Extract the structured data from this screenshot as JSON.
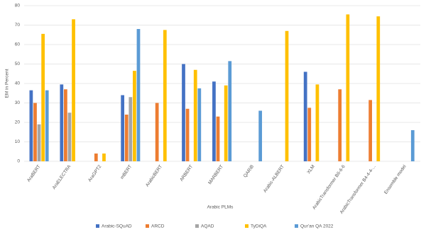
{
  "chart_data": {
    "type": "bar",
    "x_label": "Arabic PLMs",
    "y_label": "EM in Percent",
    "categories": [
      "AraBERT",
      "AraELECTRA",
      "AraGPT2",
      "mBERT",
      "ArabicBERT",
      "ARBERT",
      "MARBERT",
      "QARiB",
      "Arabic-ALBERT",
      "XLM",
      "ArabicTransformer B6-6-6",
      "ArabicTransformer B4-4-4-...",
      "Ensemble model"
    ],
    "series": [
      {
        "name": "Arabic-SQuAD",
        "color": "#4472c4",
        "values": [
          36.5,
          39.5,
          null,
          34,
          null,
          50,
          41,
          null,
          null,
          46,
          null,
          null,
          null
        ]
      },
      {
        "name": "ARCD",
        "color": "#ed7d31",
        "values": [
          30,
          37,
          4,
          24,
          30,
          27,
          23,
          null,
          null,
          27.5,
          37,
          31.5,
          null
        ]
      },
      {
        "name": "AQAD",
        "color": "#a5a5a5",
        "values": [
          19,
          25,
          null,
          33,
          null,
          null,
          null,
          null,
          null,
          null,
          null,
          null,
          null
        ]
      },
      {
        "name": "TyDiQA",
        "color": "#ffc000",
        "values": [
          65.5,
          73,
          4,
          46.5,
          67.5,
          47,
          39,
          null,
          67,
          39.5,
          75.5,
          74.5,
          null
        ]
      },
      {
        "name": "Qur'an QA 2022",
        "color": "#5b9bd5",
        "values": [
          36.5,
          null,
          null,
          68,
          null,
          37.5,
          51.5,
          26,
          null,
          null,
          null,
          null,
          16
        ]
      }
    ],
    "ylim": [
      0,
      80
    ],
    "yticks": [
      0,
      10,
      20,
      30,
      40,
      50,
      60,
      70,
      80
    ],
    "grid": true,
    "legend": "bottom"
  }
}
